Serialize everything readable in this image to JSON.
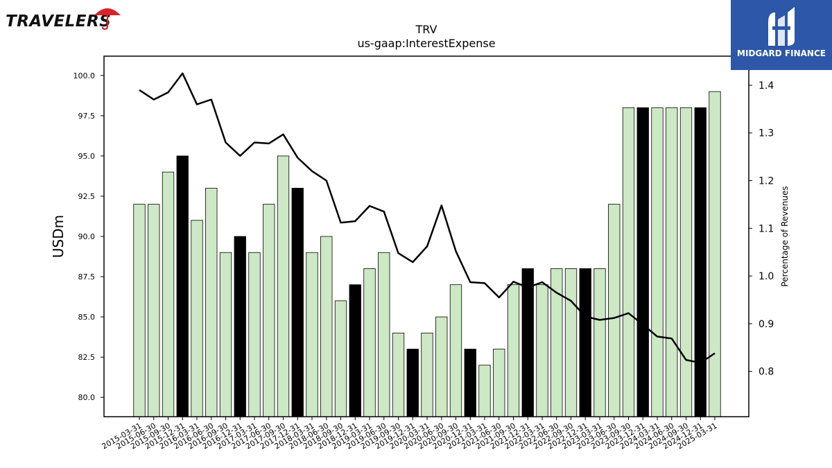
{
  "brand": {
    "left_logo_text": "TRAVELERS",
    "right_logo_text": "MIDGARD FINANCE",
    "bank_color": "#2d57a8",
    "umbrella_color": "#d7232b"
  },
  "chart_data": {
    "type": "bar",
    "title": "TRV",
    "subtitle": "us-gaap:InterestExpense",
    "ylabel": "USDm",
    "y2label": "Percentage of Revenues",
    "ylim": [
      78.8,
      101.2
    ],
    "y2lim": [
      0.705,
      1.461
    ],
    "yticks": [
      "80.0",
      "82.5",
      "85.0",
      "87.5",
      "90.0",
      "92.5",
      "95.0",
      "97.5",
      "100.0"
    ],
    "y2ticks": [
      "0.8",
      "0.9",
      "1.0",
      "1.1",
      "1.2",
      "1.3",
      "1.4"
    ],
    "bar_color": "#cde8c4",
    "highlight_color": "#000000",
    "categories": [
      "2015-03-31",
      "2015-06-30",
      "2015-09-30",
      "2015-12-31",
      "2016-03-31",
      "2016-06-30",
      "2016-09-30",
      "2016-12-31",
      "2017-03-31",
      "2017-06-30",
      "2017-09-30",
      "2017-12-31",
      "2018-03-31",
      "2018-06-30",
      "2018-09-30",
      "2018-12-31",
      "2019-03-31",
      "2019-06-30",
      "2019-09-30",
      "2019-12-31",
      "2020-03-31",
      "2020-06-30",
      "2020-09-30",
      "2020-12-31",
      "2021-03-31",
      "2021-06-30",
      "2021-09-30",
      "2021-12-31",
      "2022-03-31",
      "2022-06-30",
      "2022-09-30",
      "2022-12-31",
      "2023-03-31",
      "2023-06-30",
      "2023-09-30",
      "2023-12-31",
      "2024-03-31",
      "2024-06-30",
      "2024-09-30",
      "2024-12-31",
      "2025-03-31"
    ],
    "series": [
      {
        "type": "bar",
        "values": [
          92,
          92,
          94,
          95,
          91,
          93,
          89,
          90,
          89,
          92,
          95,
          93,
          89,
          90,
          86,
          87,
          88,
          89,
          84,
          83,
          84,
          85,
          87,
          83,
          82,
          83,
          87,
          88,
          87,
          88,
          88,
          88,
          88,
          92,
          98,
          98,
          98,
          98,
          98,
          98,
          99
        ],
        "highlight": [
          false,
          false,
          false,
          true,
          false,
          false,
          false,
          true,
          false,
          false,
          false,
          true,
          false,
          false,
          false,
          true,
          false,
          false,
          false,
          true,
          false,
          false,
          false,
          true,
          false,
          false,
          false,
          true,
          false,
          false,
          false,
          true,
          false,
          false,
          false,
          true,
          false,
          false,
          false,
          true,
          false
        ]
      },
      {
        "type": "line",
        "axis": "right",
        "values": [
          1.39,
          1.37,
          1.385,
          1.425,
          1.36,
          1.37,
          1.28,
          1.252,
          1.28,
          1.278,
          1.297,
          1.248,
          1.22,
          1.2,
          1.112,
          1.115,
          1.147,
          1.135,
          1.048,
          1.029,
          1.062,
          1.148,
          1.052,
          0.987,
          0.985,
          0.955,
          0.988,
          0.976,
          0.987,
          0.965,
          0.948,
          0.915,
          0.908,
          0.912,
          0.922,
          0.898,
          0.873,
          0.869,
          0.824,
          0.818,
          0.838
        ]
      }
    ]
  }
}
